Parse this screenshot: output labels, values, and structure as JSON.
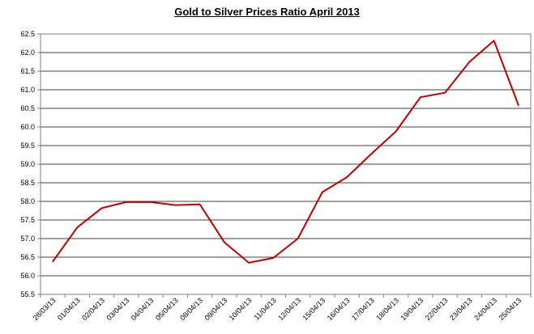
{
  "chart_data": {
    "type": "line",
    "title": "Gold to Silver Prices Ratio April  2013",
    "xlabel": "",
    "ylabel": "",
    "ylim": [
      55.5,
      62.5
    ],
    "yticks": [
      "55.5",
      "56.0",
      "56.5",
      "57.0",
      "57.5",
      "58.0",
      "58.5",
      "59.0",
      "59.5",
      "60.0",
      "60.5",
      "61.0",
      "61.5",
      "62.0",
      "62.5"
    ],
    "categories": [
      "28/03/13",
      "01/04/13",
      "02/04/13",
      "03/04/13",
      "04/04/13",
      "05/04/13",
      "08/04/13",
      "09/04/13",
      "10/04/13",
      "11/04/13",
      "12/04/13",
      "15/04/13",
      "16/04/13",
      "17/04/13",
      "18/04/13",
      "19/04/13",
      "22/04/13",
      "23/04/13",
      "24/04/13",
      "25/04/13"
    ],
    "series": [
      {
        "values": [
          56.38,
          57.3,
          57.82,
          57.98,
          57.98,
          57.9,
          57.92,
          56.9,
          56.35,
          56.48,
          57.0,
          58.25,
          58.65,
          59.28,
          59.88,
          60.8,
          60.92,
          61.75,
          62.32,
          60.58
        ]
      }
    ],
    "grid": true,
    "legend": "none",
    "line_color": "#c00000"
  }
}
